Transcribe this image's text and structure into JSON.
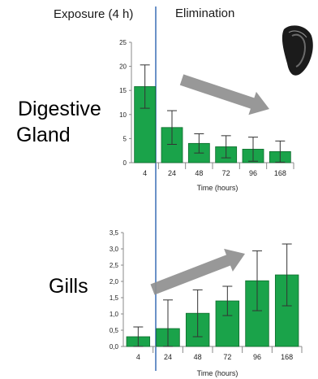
{
  "headers": {
    "exposure": "Exposure (4 h)",
    "elimination": "Elimination"
  },
  "organ_labels": {
    "top_line1": "Digestive",
    "top_line2": "Gland",
    "bottom": "Gills"
  },
  "colors": {
    "bar_fill": "#1aa34a",
    "bar_stroke": "#0d6b2b",
    "divider": "#3a6fb5",
    "arrow": "#8f8f8f",
    "error_bar": "#333333"
  },
  "icons": [
    "mussel-shell-icon"
  ],
  "chart_data": [
    {
      "type": "bar",
      "categories": [
        "4",
        "24",
        "48",
        "72",
        "96",
        "168"
      ],
      "values": [
        15.8,
        7.3,
        4.0,
        3.3,
        2.8,
        2.3
      ],
      "errors": [
        4.5,
        3.5,
        2.0,
        2.3,
        2.5,
        2.2
      ],
      "xlabel": "Time (hours)",
      "ylabel": "",
      "ylim": [
        0,
        25
      ],
      "yticks": [
        "0",
        "5",
        "10",
        "15",
        "20",
        "25"
      ],
      "grid": false,
      "trend_arrow": "down"
    },
    {
      "type": "bar",
      "categories": [
        "4",
        "24",
        "48",
        "72",
        "96",
        "168"
      ],
      "values": [
        0.3,
        0.55,
        1.02,
        1.4,
        2.02,
        2.2
      ],
      "errors": [
        0.3,
        0.88,
        0.72,
        0.45,
        0.92,
        0.95
      ],
      "xlabel": "Time (hours)",
      "ylabel": "",
      "ylim": [
        0,
        3.5
      ],
      "yticks": [
        "0,0",
        "0,5",
        "1,0",
        "1,5",
        "2,0",
        "2,5",
        "3,0",
        "3,5"
      ],
      "grid": false,
      "trend_arrow": "up"
    }
  ]
}
